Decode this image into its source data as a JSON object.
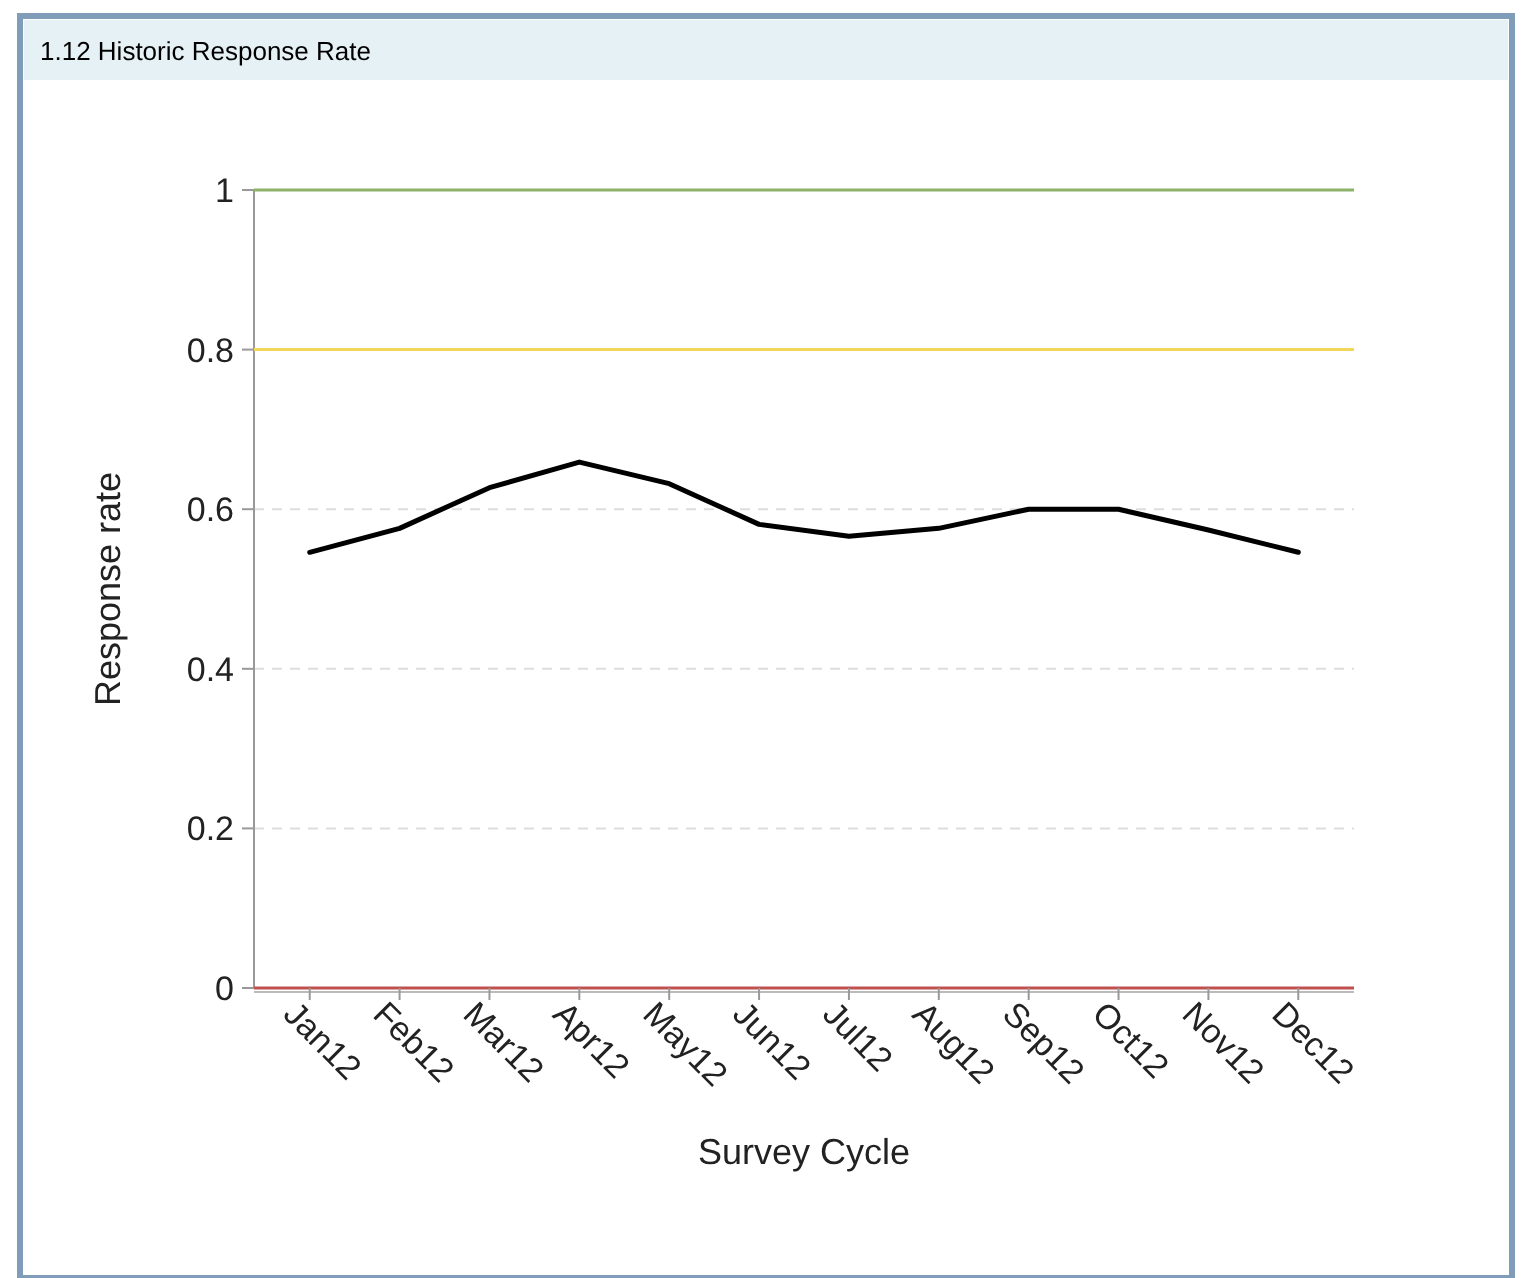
{
  "chart_data": {
    "type": "line",
    "title": "1.12 Historic Response Rate",
    "xlabel": "Survey  Cycle",
    "ylabel": "Response rate",
    "categories": [
      "Jan12",
      "Feb12",
      "Mar12",
      "Apr12",
      "May12",
      "Jun12",
      "Jul12",
      "Aug12",
      "Sep12",
      "Oct12",
      "Nov12",
      "Dec12"
    ],
    "series": [
      {
        "color": "#000000",
        "values": [
          0.546,
          0.576,
          0.627,
          0.659,
          0.632,
          0.581,
          0.566,
          0.576,
          0.6,
          0.6,
          0.574,
          0.546
        ]
      }
    ],
    "ylim": [
      0,
      1
    ],
    "yticks": [
      0,
      0.2,
      0.4,
      0.6,
      0.8,
      1
    ],
    "grid": "y",
    "marker": "none",
    "line_style": "solid",
    "ref_lines": [
      {
        "axis": "y",
        "value": 1,
        "color": "#8db36a"
      },
      {
        "axis": "y",
        "value": 0.8,
        "color": "#f2d75c"
      },
      {
        "axis": "y",
        "value": 0,
        "color": "#c0504d"
      }
    ]
  }
}
